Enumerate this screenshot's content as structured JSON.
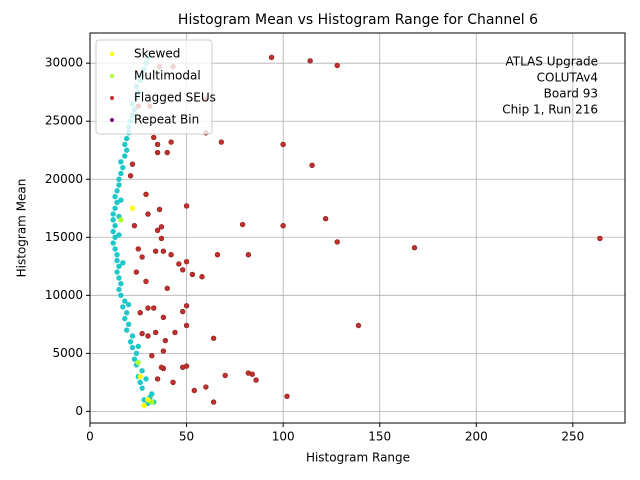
{
  "chart_data": {
    "type": "scatter",
    "title": "Histogram Mean vs Histogram Range for Channel 6",
    "xlabel": "Histogram Range",
    "ylabel": "Histogram Mean",
    "annotation": [
      "ATLAS Upgrade",
      "COLUTAv4",
      "Board 93",
      "Chip 1, Run 216"
    ],
    "xlim": [
      0,
      277
    ],
    "ylim": [
      -1000,
      32600
    ],
    "xticks": [
      0,
      50,
      100,
      150,
      200,
      250
    ],
    "yticks": [
      0,
      5000,
      10000,
      15000,
      20000,
      25000,
      30000
    ],
    "grid": true,
    "legend": "upper left",
    "series": [
      {
        "color": "#1ec8c8",
        "x": [
          30,
          28,
          32,
          27,
          26,
          25,
          27,
          24,
          23,
          24,
          22,
          21,
          22,
          19,
          20,
          18,
          19,
          17,
          18,
          16,
          15,
          16,
          15,
          14,
          15,
          14,
          14,
          13,
          12,
          13,
          12,
          13,
          12,
          12,
          13,
          14,
          13,
          14,
          15,
          15,
          16,
          17,
          16,
          18,
          19,
          18,
          19,
          20,
          20,
          21,
          22,
          23,
          22,
          24,
          25,
          24,
          26,
          27,
          28,
          29,
          30,
          31,
          33,
          29,
          15,
          15,
          16,
          17,
          20,
          25
        ],
        "values": [
          700,
          1000,
          1500,
          2000,
          2500,
          3000,
          3500,
          4000,
          4500,
          5000,
          5500,
          6000,
          6500,
          7000,
          7500,
          8000,
          8500,
          9000,
          9500,
          10000,
          10500,
          11000,
          11500,
          12000,
          12500,
          13000,
          13500,
          14000,
          14500,
          15000,
          15500,
          16000,
          16500,
          17000,
          17500,
          18000,
          18500,
          19000,
          19500,
          20000,
          20500,
          21000,
          21500,
          22000,
          22500,
          23000,
          23500,
          24000,
          24500,
          25000,
          25500,
          26000,
          26500,
          27000,
          27500,
          28000,
          28500,
          29000,
          29500,
          30000,
          30500,
          1200,
          800,
          2800,
          16800,
          15200,
          18200,
          12800,
          9200,
          5600
        ]
      },
      {
        "name": "Skewed",
        "color": "#ffff00",
        "x": [
          30,
          28,
          22,
          26
        ],
        "values": [
          1000,
          500,
          17500,
          3000
        ]
      },
      {
        "name": "Multimodal",
        "color": "#adff2f",
        "x": [
          16,
          32,
          25
        ],
        "values": [
          16500,
          800,
          4200
        ]
      },
      {
        "name": "Flagged SEUs",
        "color": "#c0302c",
        "x": [
          94,
          114,
          128,
          100,
          115,
          122,
          100,
          128,
          168,
          264,
          139,
          102,
          86,
          82,
          84,
          70,
          64,
          60,
          54,
          64,
          50,
          50,
          48,
          58,
          53,
          48,
          46,
          50,
          66,
          82,
          79,
          50,
          60,
          68,
          60,
          36,
          43,
          40,
          35,
          35,
          33,
          29,
          30,
          36,
          37,
          35,
          37,
          34,
          38,
          42,
          27,
          24,
          29,
          40,
          30,
          26,
          33,
          38,
          34,
          30,
          27,
          38,
          39,
          44,
          38,
          43,
          35,
          48,
          50,
          37,
          32,
          25,
          23,
          21,
          22,
          25,
          31,
          42
        ],
        "values": [
          30500,
          30200,
          29800,
          23000,
          21200,
          16600,
          16000,
          14600,
          14100,
          14900,
          7400,
          1300,
          2700,
          3300,
          3200,
          3100,
          800,
          2100,
          1800,
          6300,
          7400,
          9100,
          8600,
          11600,
          11800,
          12200,
          12700,
          12900,
          13500,
          13500,
          16100,
          17700,
          24000,
          23200,
          26900,
          29700,
          29700,
          22300,
          22300,
          23000,
          23600,
          18700,
          17000,
          17400,
          15900,
          15600,
          14900,
          13800,
          13800,
          13500,
          13300,
          12000,
          11200,
          10600,
          8900,
          8500,
          8900,
          8100,
          6800,
          6500,
          6700,
          5200,
          6100,
          6800,
          3700,
          2500,
          2800,
          3800,
          3900,
          3800,
          4800,
          14000,
          16000,
          20300,
          21300,
          26300,
          26300,
          23200
        ]
      },
      {
        "name": "Repeat Bin",
        "color": "#800080",
        "x": [],
        "values": []
      }
    ]
  }
}
